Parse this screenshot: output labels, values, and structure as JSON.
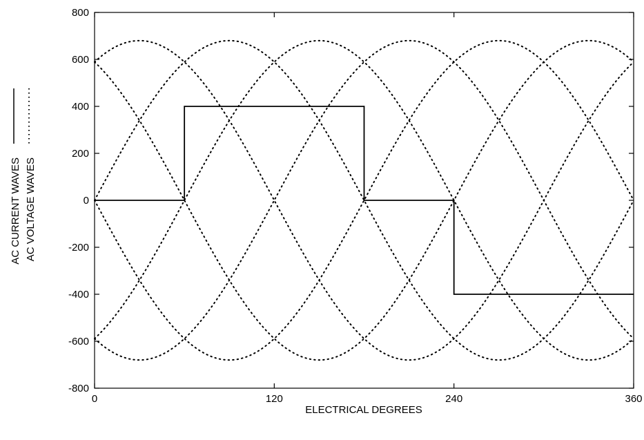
{
  "chart_data": {
    "type": "line",
    "title": "",
    "xlabel": "ELECTRICAL DEGREES",
    "ylabel_lines": [
      "AC CURRENT WAVES",
      "AC VOLTAGE WAVES"
    ],
    "xlim": [
      0,
      360
    ],
    "ylim": [
      -800,
      800
    ],
    "x_ticks": [
      0,
      120,
      240,
      360
    ],
    "y_ticks": [
      800,
      600,
      400,
      200,
      0,
      -200,
      -400,
      -600,
      -800
    ],
    "x_tick_labels": [
      "0",
      "120",
      "240",
      "360"
    ],
    "y_tick_labels": [
      "800",
      "600",
      "400",
      "200",
      "0",
      "-200",
      "-400",
      "-600",
      "-800"
    ],
    "grid": false,
    "legend": "left-vertical",
    "series": [
      {
        "style": "solid",
        "kind": "step",
        "points": [
          [
            0,
            0
          ],
          [
            60,
            0
          ],
          [
            60,
            400
          ],
          [
            180,
            400
          ],
          [
            180,
            0
          ],
          [
            240,
            0
          ],
          [
            240,
            -400
          ],
          [
            360,
            -400
          ]
        ]
      },
      {
        "style": "dotted",
        "kind": "sine-family",
        "amplitude": 680,
        "phase_offsets_deg": [
          -60,
          0,
          60,
          120,
          180,
          240
        ]
      }
    ]
  }
}
